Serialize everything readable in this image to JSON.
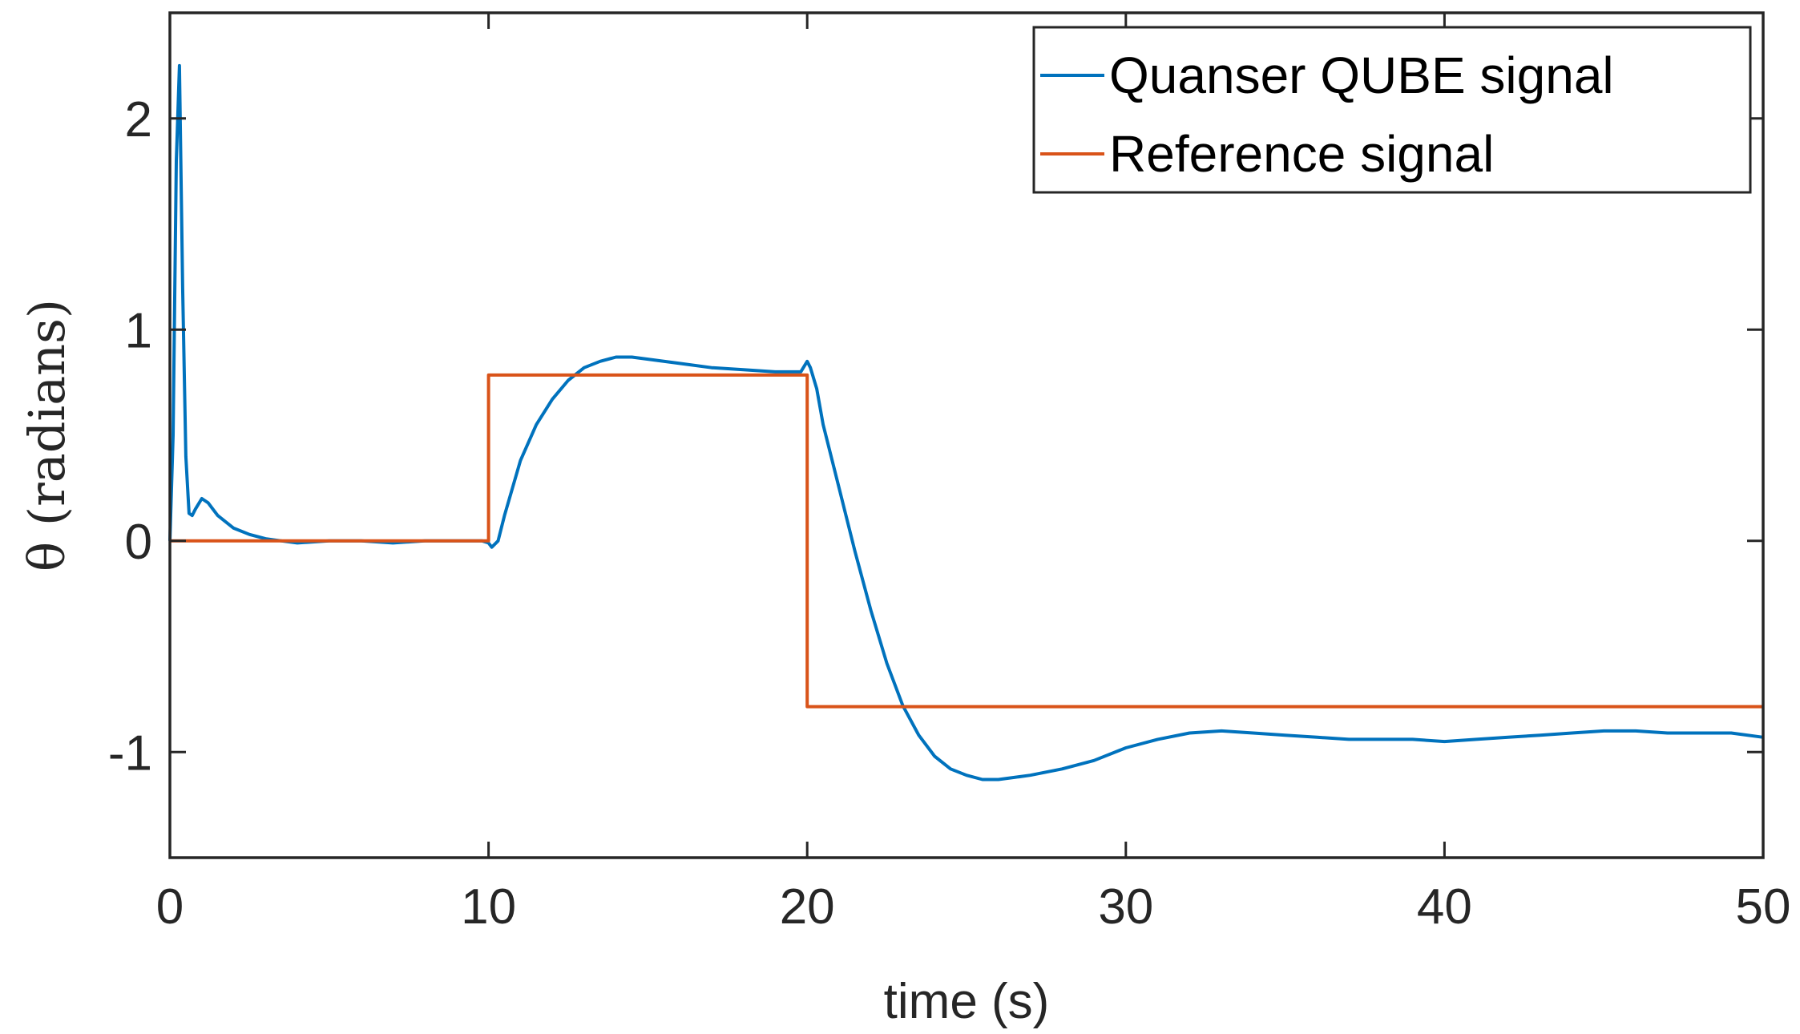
{
  "chart_data": {
    "type": "line",
    "xlabel": "time (s)",
    "ylabel": "θ (radians)",
    "xlim": [
      0,
      50
    ],
    "ylim": [
      -1.5,
      2.5
    ],
    "xticks": [
      0,
      10,
      20,
      30,
      40,
      50
    ],
    "yticks": [
      -1,
      0,
      1,
      2
    ],
    "xtick_labels": [
      "0",
      "10",
      "20",
      "30",
      "40",
      "50"
    ],
    "ytick_labels": [
      "-1",
      "0",
      "1",
      "2"
    ],
    "grid": false,
    "legend_position": "top-right",
    "series": [
      {
        "name": "Quanser QUBE signal",
        "color": "#0072BD",
        "x": [
          0,
          0.1,
          0.2,
          0.3,
          0.4,
          0.5,
          0.6,
          0.7,
          0.8,
          1.0,
          1.2,
          1.5,
          2.0,
          2.5,
          3.0,
          3.5,
          4.0,
          5.0,
          6.0,
          7.0,
          8.0,
          9.0,
          9.8,
          10.0,
          10.1,
          10.3,
          10.5,
          11.0,
          11.5,
          12.0,
          12.5,
          13.0,
          13.5,
          14.0,
          14.5,
          15.0,
          16.0,
          17.0,
          18.0,
          19.0,
          19.8,
          20.0,
          20.1,
          20.3,
          20.5,
          21.0,
          21.5,
          22.0,
          22.5,
          23.0,
          23.5,
          24.0,
          24.5,
          25.0,
          25.5,
          26.0,
          26.5,
          27.0,
          28.0,
          29.0,
          30.0,
          31.0,
          32.0,
          33.0,
          34.0,
          35.0,
          36.0,
          37.0,
          38.0,
          39.0,
          40.0,
          41.0,
          42.0,
          43.0,
          44.0,
          45.0,
          46.0,
          47.0,
          48.0,
          49.0,
          50.0
        ],
        "y": [
          0,
          0.5,
          1.8,
          2.25,
          1.2,
          0.4,
          0.13,
          0.12,
          0.15,
          0.2,
          0.18,
          0.12,
          0.06,
          0.03,
          0.01,
          0.0,
          -0.01,
          0.0,
          0.0,
          -0.01,
          0.0,
          0.0,
          0.0,
          -0.01,
          -0.03,
          0.0,
          0.12,
          0.38,
          0.55,
          0.67,
          0.76,
          0.82,
          0.85,
          0.87,
          0.87,
          0.86,
          0.84,
          0.82,
          0.81,
          0.8,
          0.8,
          0.85,
          0.82,
          0.72,
          0.55,
          0.25,
          -0.05,
          -0.33,
          -0.58,
          -0.78,
          -0.92,
          -1.02,
          -1.08,
          -1.11,
          -1.13,
          -1.13,
          -1.12,
          -1.11,
          -1.08,
          -1.04,
          -0.98,
          -0.94,
          -0.91,
          -0.9,
          -0.91,
          -0.92,
          -0.93,
          -0.94,
          -0.94,
          -0.94,
          -0.95,
          -0.94,
          -0.93,
          -0.92,
          -0.91,
          -0.9,
          -0.9,
          -0.91,
          -0.91,
          -0.91,
          -0.93
        ]
      },
      {
        "name": "Reference signal",
        "color": "#D95319",
        "x": [
          0,
          10,
          10,
          20,
          20,
          50
        ],
        "y": [
          0,
          0,
          0.785,
          0.785,
          -0.785,
          -0.785
        ]
      }
    ]
  }
}
